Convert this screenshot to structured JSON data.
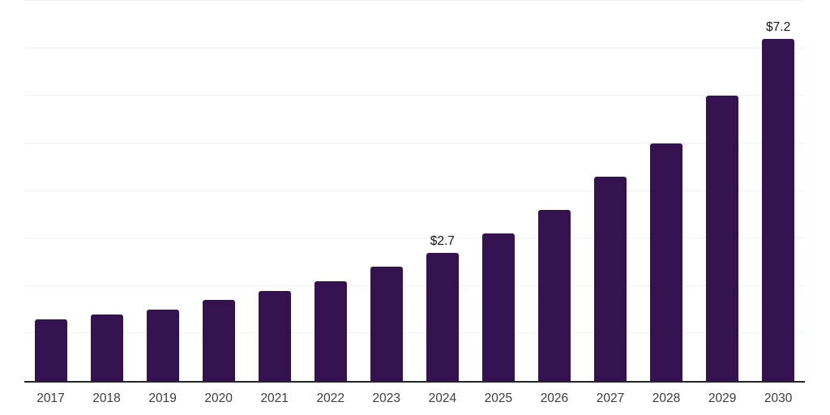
{
  "chart": {
    "bar_color": "#341250",
    "gridline_color": "#f0f0f0",
    "axis_color": "#262626",
    "tick_label_color": "#3c3c3c",
    "data_label_color": "#161616",
    "background_color": "#ffffff"
  },
  "chart_data": {
    "type": "bar",
    "categories": [
      "2017",
      "2018",
      "2019",
      "2020",
      "2021",
      "2022",
      "2023",
      "2024",
      "2025",
      "2026",
      "2027",
      "2028",
      "2029",
      "2030"
    ],
    "values": [
      1.3,
      1.4,
      1.5,
      1.7,
      1.9,
      2.1,
      2.4,
      2.7,
      3.1,
      3.6,
      4.3,
      5.0,
      6.0,
      7.2
    ],
    "point_labels": [
      "",
      "",
      "",
      "",
      "",
      "",
      "",
      "$2.7",
      "",
      "",
      "",
      "",
      "",
      "$7.2"
    ],
    "title": "",
    "xlabel": "",
    "ylabel": "",
    "ylim": [
      0,
      8
    ],
    "gridline_step": 1,
    "grid": true,
    "legend": false,
    "value_prefix": "$"
  }
}
